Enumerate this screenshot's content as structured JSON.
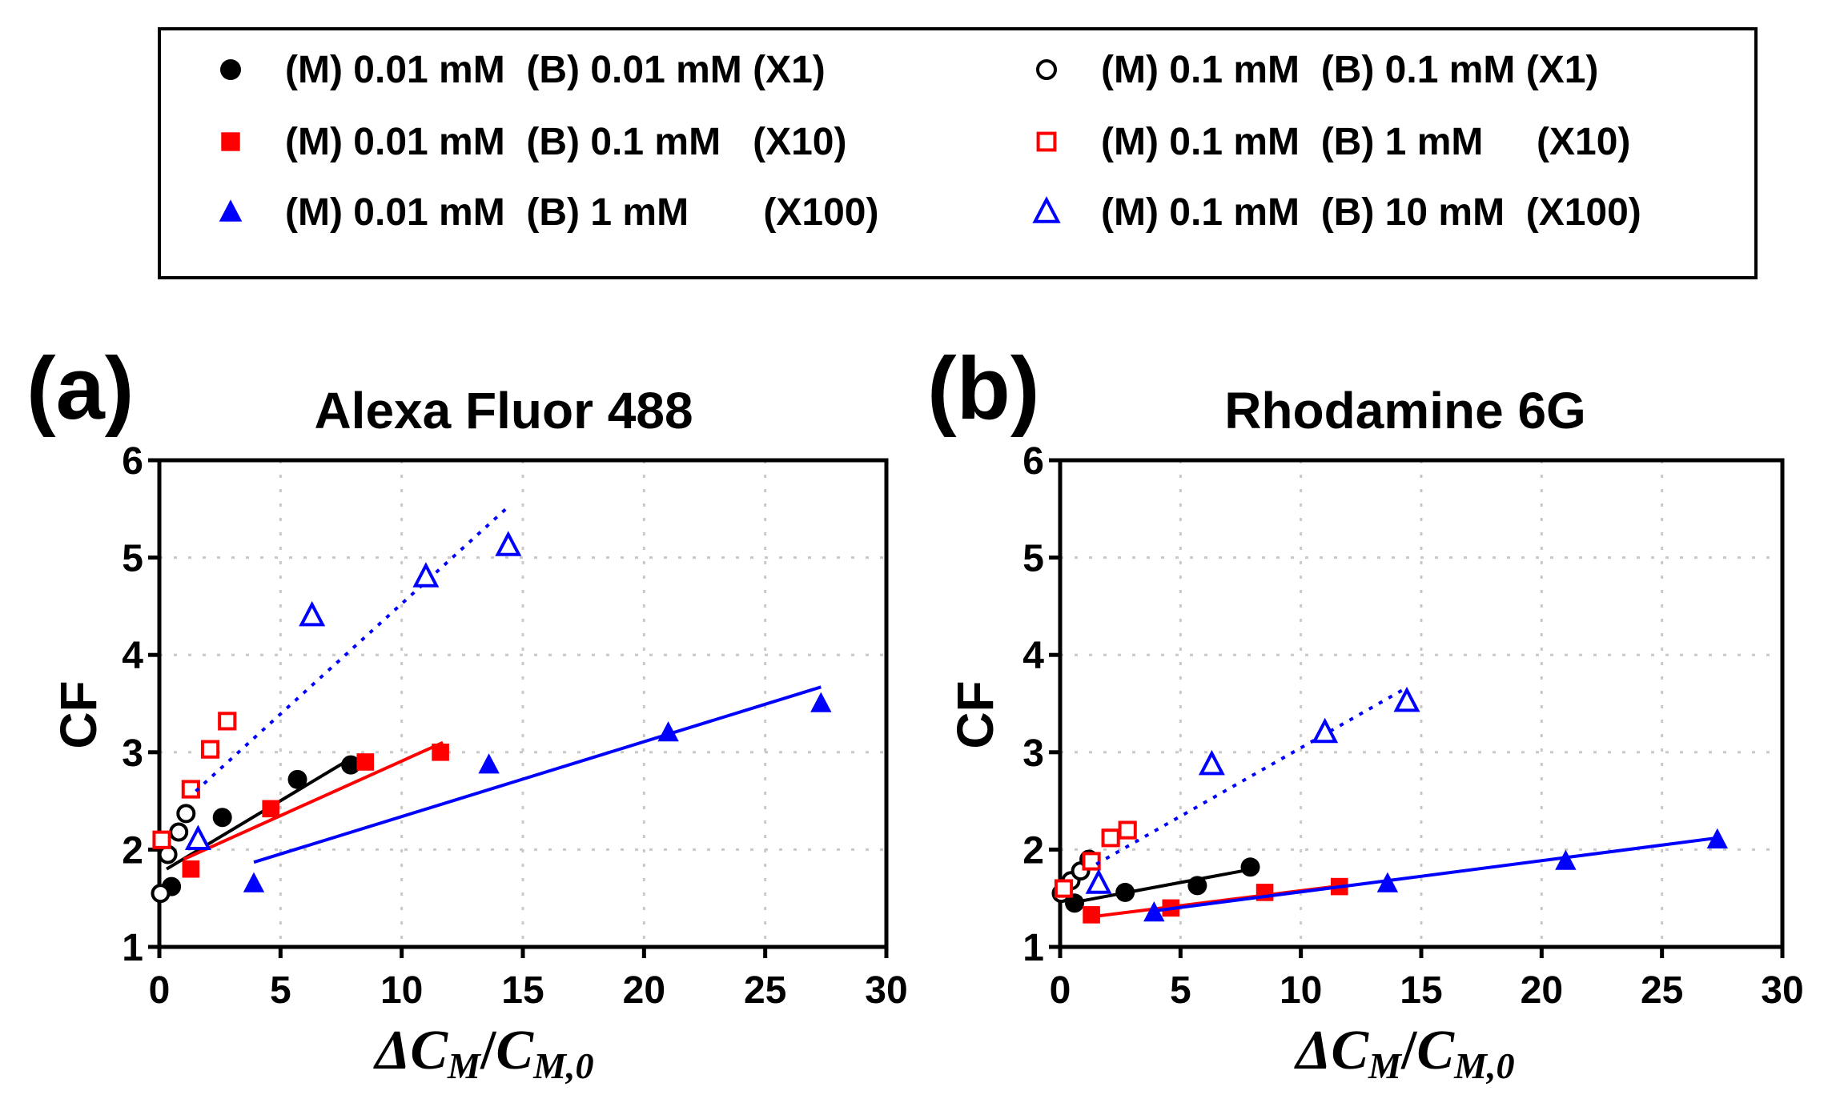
{
  "legend": {
    "entries": [
      {
        "key": "m001_b001",
        "marker": "circle-filled",
        "color": "#000000",
        "label": "(M) 0.01 mM  (B) 0.01 mM (X1)"
      },
      {
        "key": "m01_b01",
        "marker": "circle-open",
        "color": "#000000",
        "label": "(M) 0.1 mM  (B) 0.1 mM (X1)"
      },
      {
        "key": "m001_b01",
        "marker": "square-filled",
        "color": "#ff0000",
        "label": "(M) 0.01 mM  (B) 0.1 mM   (X10)"
      },
      {
        "key": "m01_b1",
        "marker": "square-open",
        "color": "#ff0000",
        "label": "(M) 0.1 mM  (B) 1 mM     (X10)"
      },
      {
        "key": "m001_b1",
        "marker": "triangle-filled",
        "color": "#0000ff",
        "label": "(M) 0.01 mM  (B) 1 mM       (X100)"
      },
      {
        "key": "m01_b10",
        "marker": "triangle-open",
        "color": "#0000ff",
        "label": "(M) 0.1 mM  (B) 10 mM  (X100)"
      }
    ]
  },
  "chart_data": [
    {
      "type": "scatter",
      "panel_label": "(a)",
      "title": "Alexa Fluor 488",
      "ylabel": "CF",
      "xlim": [
        0,
        30
      ],
      "ylim": [
        1,
        6
      ],
      "xticks": [
        "0",
        "5",
        "10",
        "15",
        "20",
        "25",
        "30"
      ],
      "yticks": [
        "1",
        "2",
        "3",
        "4",
        "5",
        "6"
      ],
      "grid": true,
      "series": [
        {
          "key": "m001_b001",
          "points": [
            [
              0.5,
              1.62
            ],
            [
              2.6,
              2.33
            ],
            [
              5.7,
              2.72
            ],
            [
              7.9,
              2.87
            ]
          ],
          "fit": [
            [
              0.3,
              1.8
            ],
            [
              8.0,
              2.95
            ]
          ],
          "fit_style": "solid"
        },
        {
          "key": "m01_b01",
          "points": [
            [
              0.05,
              1.55
            ],
            [
              0.35,
              1.95
            ],
            [
              0.8,
              2.18
            ],
            [
              1.1,
              2.37
            ]
          ],
          "fit": null,
          "fit_style": null
        },
        {
          "key": "m001_b01",
          "points": [
            [
              1.3,
              1.8
            ],
            [
              4.6,
              2.42
            ],
            [
              8.5,
              2.9
            ],
            [
              11.6,
              3.0
            ]
          ],
          "fit": [
            [
              1.0,
              1.9
            ],
            [
              11.7,
              3.1
            ]
          ],
          "fit_style": "solid"
        },
        {
          "key": "m01_b1",
          "points": [
            [
              0.1,
              2.1
            ],
            [
              1.3,
              2.62
            ],
            [
              2.1,
              3.03
            ],
            [
              2.8,
              3.32
            ]
          ],
          "fit": null,
          "fit_style": null
        },
        {
          "key": "m001_b1",
          "points": [
            [
              3.9,
              1.65
            ],
            [
              13.6,
              2.87
            ],
            [
              21.0,
              3.2
            ],
            [
              27.3,
              3.5
            ]
          ],
          "fit": [
            [
              3.9,
              1.87
            ],
            [
              27.3,
              3.67
            ]
          ],
          "fit_style": "solid"
        },
        {
          "key": "m01_b10",
          "points": [
            [
              1.6,
              2.1
            ],
            [
              6.3,
              4.4
            ],
            [
              11.0,
              4.8
            ],
            [
              14.4,
              5.12
            ]
          ],
          "fit": [
            [
              1.5,
              2.6
            ],
            [
              14.3,
              5.5
            ]
          ],
          "fit_style": "dotted"
        }
      ]
    },
    {
      "type": "scatter",
      "panel_label": "(b)",
      "title": "Rhodamine 6G",
      "ylabel": "CF",
      "xlim": [
        0,
        30
      ],
      "ylim": [
        1,
        6
      ],
      "xticks": [
        "0",
        "5",
        "10",
        "15",
        "20",
        "25",
        "30"
      ],
      "yticks": [
        "1",
        "2",
        "3",
        "4",
        "5",
        "6"
      ],
      "grid": true,
      "series": [
        {
          "key": "m001_b001",
          "points": [
            [
              0.6,
              1.45
            ],
            [
              2.7,
              1.56
            ],
            [
              5.7,
              1.63
            ],
            [
              7.9,
              1.82
            ]
          ],
          "fit": [
            [
              0.4,
              1.45
            ],
            [
              8.0,
              1.8
            ]
          ],
          "fit_style": "solid"
        },
        {
          "key": "m01_b01",
          "points": [
            [
              0.05,
              1.55
            ],
            [
              0.45,
              1.68
            ],
            [
              0.85,
              1.78
            ],
            [
              1.2,
              1.9
            ]
          ],
          "fit": null,
          "fit_style": null
        },
        {
          "key": "m001_b01",
          "points": [
            [
              1.3,
              1.33
            ],
            [
              4.6,
              1.4
            ],
            [
              8.5,
              1.56
            ],
            [
              11.6,
              1.62
            ]
          ],
          "fit": [
            [
              1.0,
              1.3
            ],
            [
              11.7,
              1.63
            ]
          ],
          "fit_style": "solid"
        },
        {
          "key": "m01_b1",
          "points": [
            [
              0.15,
              1.6
            ],
            [
              1.3,
              1.88
            ],
            [
              2.1,
              2.12
            ],
            [
              2.8,
              2.2
            ]
          ],
          "fit": null,
          "fit_style": null
        },
        {
          "key": "m001_b1",
          "points": [
            [
              3.9,
              1.35
            ],
            [
              13.6,
              1.65
            ],
            [
              21.0,
              1.88
            ],
            [
              27.3,
              2.1
            ]
          ],
          "fit": [
            [
              3.9,
              1.37
            ],
            [
              27.3,
              2.12
            ]
          ],
          "fit_style": "solid"
        },
        {
          "key": "m01_b10",
          "points": [
            [
              1.6,
              1.65
            ],
            [
              6.3,
              2.87
            ],
            [
              11.0,
              3.2
            ],
            [
              14.4,
              3.52
            ]
          ],
          "fit": [
            [
              1.5,
              1.85
            ],
            [
              14.3,
              3.65
            ]
          ],
          "fit_style": "dotted"
        }
      ]
    }
  ]
}
